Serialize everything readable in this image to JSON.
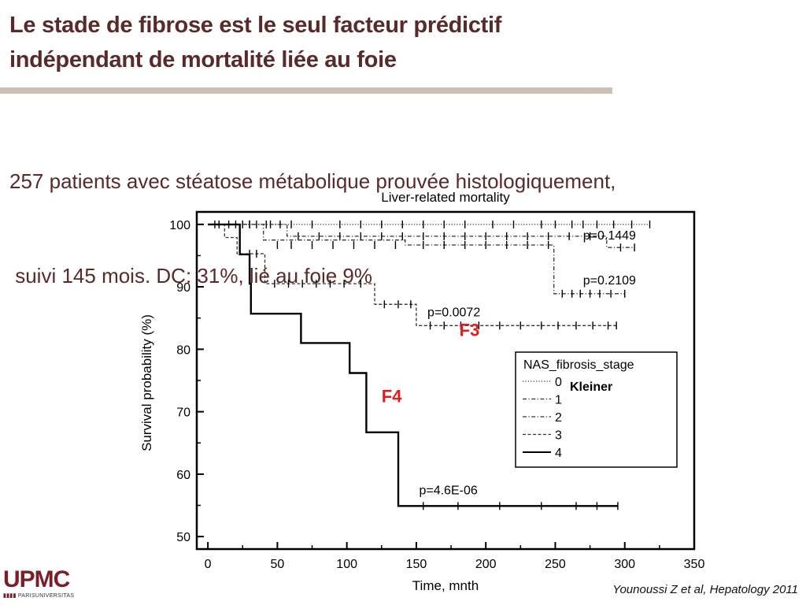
{
  "slide": {
    "title_line1": "Le stade de fibrose est le seul facteur prédictif",
    "title_line2": "indépendant de mortalité liée au foie",
    "subtitle_line1": "257 patients avec stéatose métabolique prouvée histologiquement,",
    "subtitle_line2": " suivi 145 mois. DC: 31%, lié au foie 9%",
    "citation": "Younoussi Z et al, Hepatology 2011",
    "colors": {
      "title": "#5a2a2a",
      "rule": "#cdc0b3",
      "annotation": "#e41a1c",
      "logo": "#7a1f27"
    }
  },
  "logo": {
    "word": "UPMC",
    "sub": "PARISUNIVERSITAS"
  },
  "chart_data": {
    "type": "line",
    "title": "Liver-related mortality",
    "xlabel": "Time, mnth",
    "ylabel": "Survival probability (%)",
    "xlim": [
      -8,
      350
    ],
    "ylim": [
      48,
      102
    ],
    "xticks": [
      0,
      50,
      100,
      150,
      200,
      250,
      300,
      350
    ],
    "yticks": [
      50,
      60,
      70,
      80,
      90,
      100
    ],
    "legend": {
      "title": "NAS_fibrosis_stage",
      "placement": "right",
      "note": "Kleiner"
    },
    "series": [
      {
        "name": "0",
        "style": "dotted",
        "color": "#333333",
        "steps": [
          [
            0,
            100
          ],
          [
            318,
            100
          ]
        ],
        "censors": [
          [
            15,
            100
          ],
          [
            30,
            100
          ],
          [
            45,
            100
          ],
          [
            60,
            100
          ],
          [
            75,
            100
          ],
          [
            95,
            100
          ],
          [
            110,
            100
          ],
          [
            125,
            100
          ],
          [
            140,
            100
          ],
          [
            155,
            100
          ],
          [
            170,
            100
          ],
          [
            185,
            100
          ],
          [
            205,
            100
          ],
          [
            220,
            100
          ],
          [
            240,
            100
          ],
          [
            250,
            100
          ],
          [
            262,
            100
          ],
          [
            270,
            100
          ],
          [
            280,
            100
          ],
          [
            292,
            100
          ],
          [
            305,
            100
          ],
          [
            318,
            100
          ]
        ]
      },
      {
        "name": "1",
        "style": "dashdot",
        "color": "#333333",
        "steps": [
          [
            0,
            100
          ],
          [
            57,
            100
          ],
          [
            57,
            98.1
          ],
          [
            287,
            98.1
          ],
          [
            287,
            96.3
          ],
          [
            307,
            96.3
          ]
        ],
        "censors": [
          [
            8,
            100
          ],
          [
            20,
            100
          ],
          [
            30,
            100
          ],
          [
            42,
            100
          ],
          [
            52,
            100
          ],
          [
            65,
            98.1
          ],
          [
            80,
            98.1
          ],
          [
            95,
            98.1
          ],
          [
            110,
            98.1
          ],
          [
            125,
            98.1
          ],
          [
            140,
            98.1
          ],
          [
            155,
            98.1
          ],
          [
            170,
            98.1
          ],
          [
            185,
            98.1
          ],
          [
            200,
            98.1
          ],
          [
            215,
            98.1
          ],
          [
            230,
            98.1
          ],
          [
            245,
            98.1
          ],
          [
            260,
            98.1
          ],
          [
            275,
            98.1
          ],
          [
            297,
            96.3
          ],
          [
            307,
            96.3
          ]
        ]
      },
      {
        "name": "2",
        "style": "dashdot",
        "color": "#333333",
        "steps": [
          [
            0,
            100
          ],
          [
            40,
            100
          ],
          [
            40,
            97.5
          ],
          [
            142,
            97.5
          ],
          [
            142,
            96.7
          ],
          [
            249,
            96.7
          ],
          [
            249,
            88.9
          ],
          [
            300,
            88.9
          ]
        ],
        "censors": [
          [
            25,
            100
          ],
          [
            35,
            100
          ],
          [
            50,
            96.7
          ],
          [
            60,
            96.7
          ],
          [
            75,
            96.7
          ],
          [
            90,
            96.7
          ],
          [
            105,
            96.7
          ],
          [
            120,
            96.7
          ],
          [
            135,
            96.7
          ],
          [
            155,
            96.7
          ],
          [
            170,
            96.7
          ],
          [
            185,
            96.7
          ],
          [
            200,
            96.7
          ],
          [
            215,
            96.7
          ],
          [
            230,
            96.7
          ],
          [
            245,
            96.7
          ],
          [
            255,
            88.9
          ],
          [
            262,
            88.9
          ],
          [
            268,
            88.9
          ],
          [
            275,
            88.9
          ],
          [
            282,
            88.9
          ],
          [
            290,
            88.9
          ],
          [
            300,
            88.9
          ]
        ]
      },
      {
        "name": "3",
        "style": "dashed",
        "color": "#333333",
        "steps": [
          [
            0,
            100
          ],
          [
            12,
            100
          ],
          [
            12,
            97.9
          ],
          [
            21,
            97.9
          ],
          [
            21,
            95.3
          ],
          [
            41,
            95.3
          ],
          [
            41,
            90.5
          ],
          [
            120,
            90.5
          ],
          [
            120,
            87.2
          ],
          [
            150,
            87.2
          ],
          [
            150,
            83.8
          ],
          [
            294,
            83.8
          ]
        ],
        "censors": [
          [
            5,
            100
          ],
          [
            30,
            95.3
          ],
          [
            35,
            95.3
          ],
          [
            48,
            90.5
          ],
          [
            58,
            90.5
          ],
          [
            68,
            90.5
          ],
          [
            78,
            90.5
          ],
          [
            88,
            90.5
          ],
          [
            98,
            90.5
          ],
          [
            110,
            90.5
          ],
          [
            127,
            87.2
          ],
          [
            137,
            87.2
          ],
          [
            146,
            87.2
          ],
          [
            160,
            83.8
          ],
          [
            170,
            83.8
          ],
          [
            182,
            83.8
          ],
          [
            195,
            83.8
          ],
          [
            210,
            83.8
          ],
          [
            225,
            83.8
          ],
          [
            240,
            83.8
          ],
          [
            252,
            83.8
          ],
          [
            265,
            83.8
          ],
          [
            277,
            83.8
          ],
          [
            288,
            83.8
          ],
          [
            294,
            83.8
          ]
        ]
      },
      {
        "name": "4",
        "style": "solid",
        "color": "#000000",
        "steps": [
          [
            0,
            100
          ],
          [
            23,
            100
          ],
          [
            23,
            95.2
          ],
          [
            30,
            95.2
          ],
          [
            30,
            90.5
          ],
          [
            31,
            90.5
          ],
          [
            31,
            85.7
          ],
          [
            67,
            85.7
          ],
          [
            67,
            81.0
          ],
          [
            102,
            81.0
          ],
          [
            102,
            76.2
          ],
          [
            114,
            76.2
          ],
          [
            114,
            66.7
          ],
          [
            137,
            66.7
          ],
          [
            137,
            54.9
          ],
          [
            295,
            54.9
          ]
        ],
        "censors": [
          [
            155,
            54.9
          ],
          [
            180,
            54.9
          ],
          [
            210,
            54.9
          ],
          [
            240,
            54.9
          ],
          [
            265,
            54.9
          ],
          [
            280,
            54.9
          ],
          [
            295,
            54.9
          ]
        ]
      }
    ],
    "annotations": [
      {
        "text": "p=0.1449",
        "x": 270,
        "y": 97.6,
        "color": "#000000"
      },
      {
        "text": "p=0.2109",
        "x": 270,
        "y": 90.4,
        "color": "#000000"
      },
      {
        "text": "p=0.0072",
        "x": 158,
        "y": 85.3,
        "color": "#000000"
      },
      {
        "text": "p=4.6E-06",
        "x": 152,
        "y": 56.8,
        "color": "#000000"
      },
      {
        "text": "F3",
        "x": 181,
        "y": 82.1,
        "color": "#e41a1c"
      },
      {
        "text": "F4",
        "x": 125,
        "y": 71.5,
        "color": "#e41a1c"
      }
    ]
  }
}
